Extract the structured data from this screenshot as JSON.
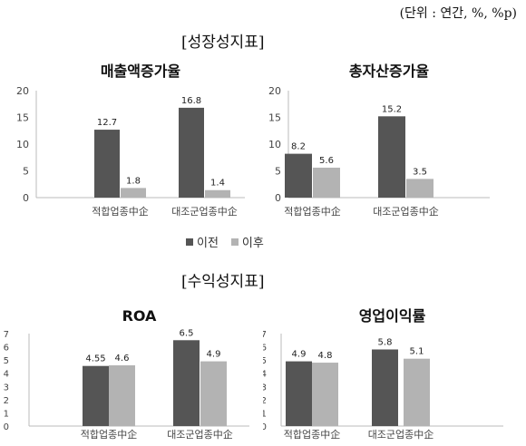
{
  "unit_note": "(단위 : 연간, %, %p)",
  "sections": {
    "growth": "[성장성지표]",
    "profit": "[수익성지표]"
  },
  "legend": [
    {
      "label": "이전",
      "color": "#555555"
    },
    {
      "label": "이후",
      "color": "#b3b3b3"
    }
  ],
  "chart_data": [
    {
      "type": "bar",
      "title": "매출액증가율",
      "categories": [
        "적합업종中企",
        "대조군업종中企"
      ],
      "series": [
        {
          "name": "이전",
          "values": [
            12.7,
            16.8
          ],
          "labels": [
            "12.7",
            "16.8"
          ]
        },
        {
          "name": "이후",
          "values": [
            1.8,
            1.4
          ],
          "labels": [
            "1.8",
            "1.4"
          ]
        }
      ],
      "ylim": [
        0,
        20
      ],
      "yticks": [
        "0",
        "5",
        "10",
        "15",
        "20"
      ],
      "grid": false,
      "legend_position": "bottom"
    },
    {
      "type": "bar",
      "title": "총자산증가율",
      "categories": [
        "적합업종中企",
        "대조군업종中企"
      ],
      "series": [
        {
          "name": "이전",
          "values": [
            8.2,
            15.2
          ],
          "labels": [
            "8.2",
            "15.2"
          ]
        },
        {
          "name": "이후",
          "values": [
            5.6,
            3.5
          ],
          "labels": [
            "5.6",
            "3.5"
          ]
        }
      ],
      "ylim": [
        0,
        20
      ],
      "yticks": [
        "0",
        "5",
        "10",
        "15",
        "20"
      ],
      "grid": false,
      "legend_position": "bottom"
    },
    {
      "type": "bar",
      "title": "ROA",
      "categories": [
        "적합업종中企",
        "대조군업종中企"
      ],
      "series": [
        {
          "name": "이전",
          "values": [
            4.55,
            6.5
          ],
          "labels": [
            "4.55",
            "6.5"
          ]
        },
        {
          "name": "이후",
          "values": [
            4.6,
            4.9
          ],
          "labels": [
            "4.6",
            "4.9"
          ]
        }
      ],
      "ylim": [
        0,
        7
      ],
      "yticks": [
        "0",
        "1",
        "2",
        "3",
        "4",
        "5",
        "6",
        "7"
      ],
      "grid": false
    },
    {
      "type": "bar",
      "title": "영업이익률",
      "categories": [
        "적합업종中企",
        "대조군업종中企"
      ],
      "series": [
        {
          "name": "이전",
          "values": [
            4.9,
            5.8
          ],
          "labels": [
            "4.9",
            "5.8"
          ]
        },
        {
          "name": "이후",
          "values": [
            4.8,
            5.1
          ],
          "labels": [
            "4.8",
            "5.1"
          ]
        }
      ],
      "ylim": [
        0,
        7
      ],
      "yticks": [
        "0",
        "1",
        "2",
        "3",
        "4",
        "5",
        "6",
        "7"
      ],
      "grid": false
    }
  ]
}
